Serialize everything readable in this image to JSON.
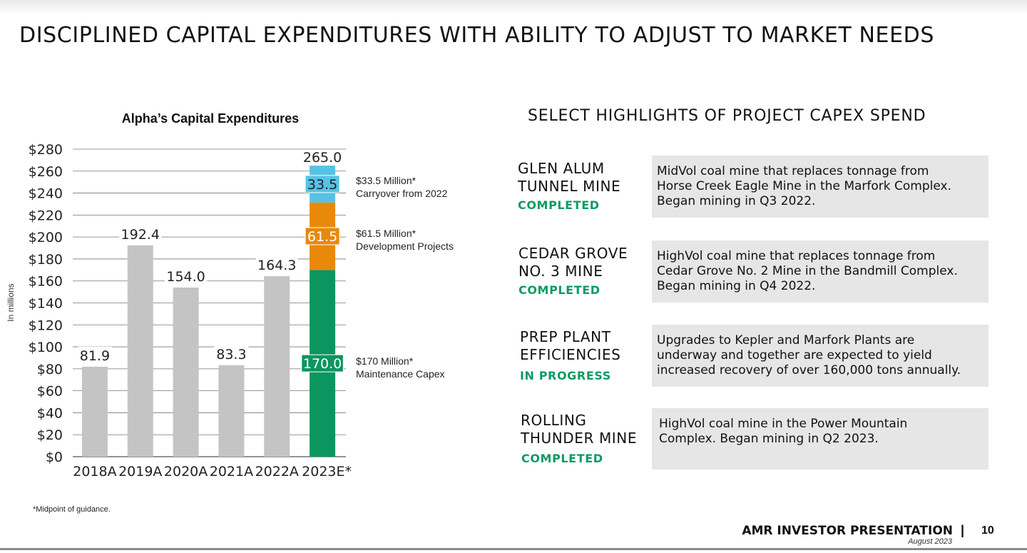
{
  "slide": {
    "title": "DISCIPLINED CAPITAL EXPENDITURES WITH ABILITY TO ADJUST TO MARKET NEEDS",
    "footnote": "*Midpoint of guidance.",
    "footer_brand": "AMR INVESTOR PRESENTATION",
    "footer_separator": "|",
    "footer_date": "August 2023",
    "page_number": "10"
  },
  "chart_data": {
    "type": "bar",
    "title": "Alpha’s Capital Expenditures",
    "ylabel": "In millions",
    "xlabel": "",
    "ylim": [
      0,
      280
    ],
    "y_tick_step": 20,
    "y_tick_labels": [
      "$0",
      "$20",
      "$40",
      "$60",
      "$80",
      "$100",
      "$120",
      "$140",
      "$160",
      "$180",
      "$200",
      "$220",
      "$240",
      "$260",
      "$280"
    ],
    "grid": true,
    "categories": [
      "2018A",
      "2019A",
      "2020A",
      "2021A",
      "2022A",
      "2023E*"
    ],
    "values": [
      81.9,
      192.4,
      154.0,
      83.3,
      164.3,
      265.0
    ],
    "value_labels": [
      "81.9",
      "192.4",
      "154.0",
      "83.3",
      "164.3",
      "265.0"
    ],
    "stacked_bar": {
      "category": "2023E*",
      "segments": [
        {
          "value": 170.0,
          "label": "170.0",
          "color": "#0b9660",
          "annotation": [
            "$170 Million*",
            "Maintenance Capex"
          ]
        },
        {
          "value": 61.5,
          "label": "61.5",
          "color": "#e8890c",
          "annotation": [
            "$61.5 Million*",
            "Development Projects"
          ]
        },
        {
          "value": 33.5,
          "label": "33.5",
          "color": "#57c2e6",
          "annotation": [
            "$33.5 Million*",
            "Carryover from 2022"
          ]
        }
      ]
    },
    "bar_color": "#c4c4c4"
  },
  "highlights": {
    "title": "SELECT HIGHLIGHTS OF PROJECT CAPEX SPEND",
    "status_color": "#0d9a63",
    "projects": [
      {
        "name_lines": [
          "GLEN ALUM",
          "TUNNEL MINE"
        ],
        "status": "COMPLETED",
        "desc_lines": [
          "MidVol coal mine that replaces tonnage from",
          "Horse Creek Eagle Mine in the Marfork Complex.",
          "Began mining in Q3 2022."
        ]
      },
      {
        "name_lines": [
          "CEDAR GROVE",
          "NO. 3 MINE"
        ],
        "status": "COMPLETED",
        "desc_lines": [
          "HighVol coal mine that replaces tonnage from",
          "Cedar Grove No. 2 Mine in the Bandmill Complex.",
          "Began mining in Q4 2022."
        ]
      },
      {
        "name_lines": [
          "PREP PLANT",
          "EFFICIENCIES"
        ],
        "status": "IN PROGRESS",
        "desc_lines": [
          "Upgrades to Kepler and Marfork Plants are",
          "underway and together are expected to yield",
          "increased recovery of over 160,000 tons annually."
        ]
      },
      {
        "name_lines": [
          "ROLLING",
          "THUNDER MINE"
        ],
        "status": "COMPLETED",
        "desc_lines": [
          "HighVol coal mine in the Power Mountain",
          "Complex. Began mining in Q2 2023."
        ]
      }
    ]
  }
}
